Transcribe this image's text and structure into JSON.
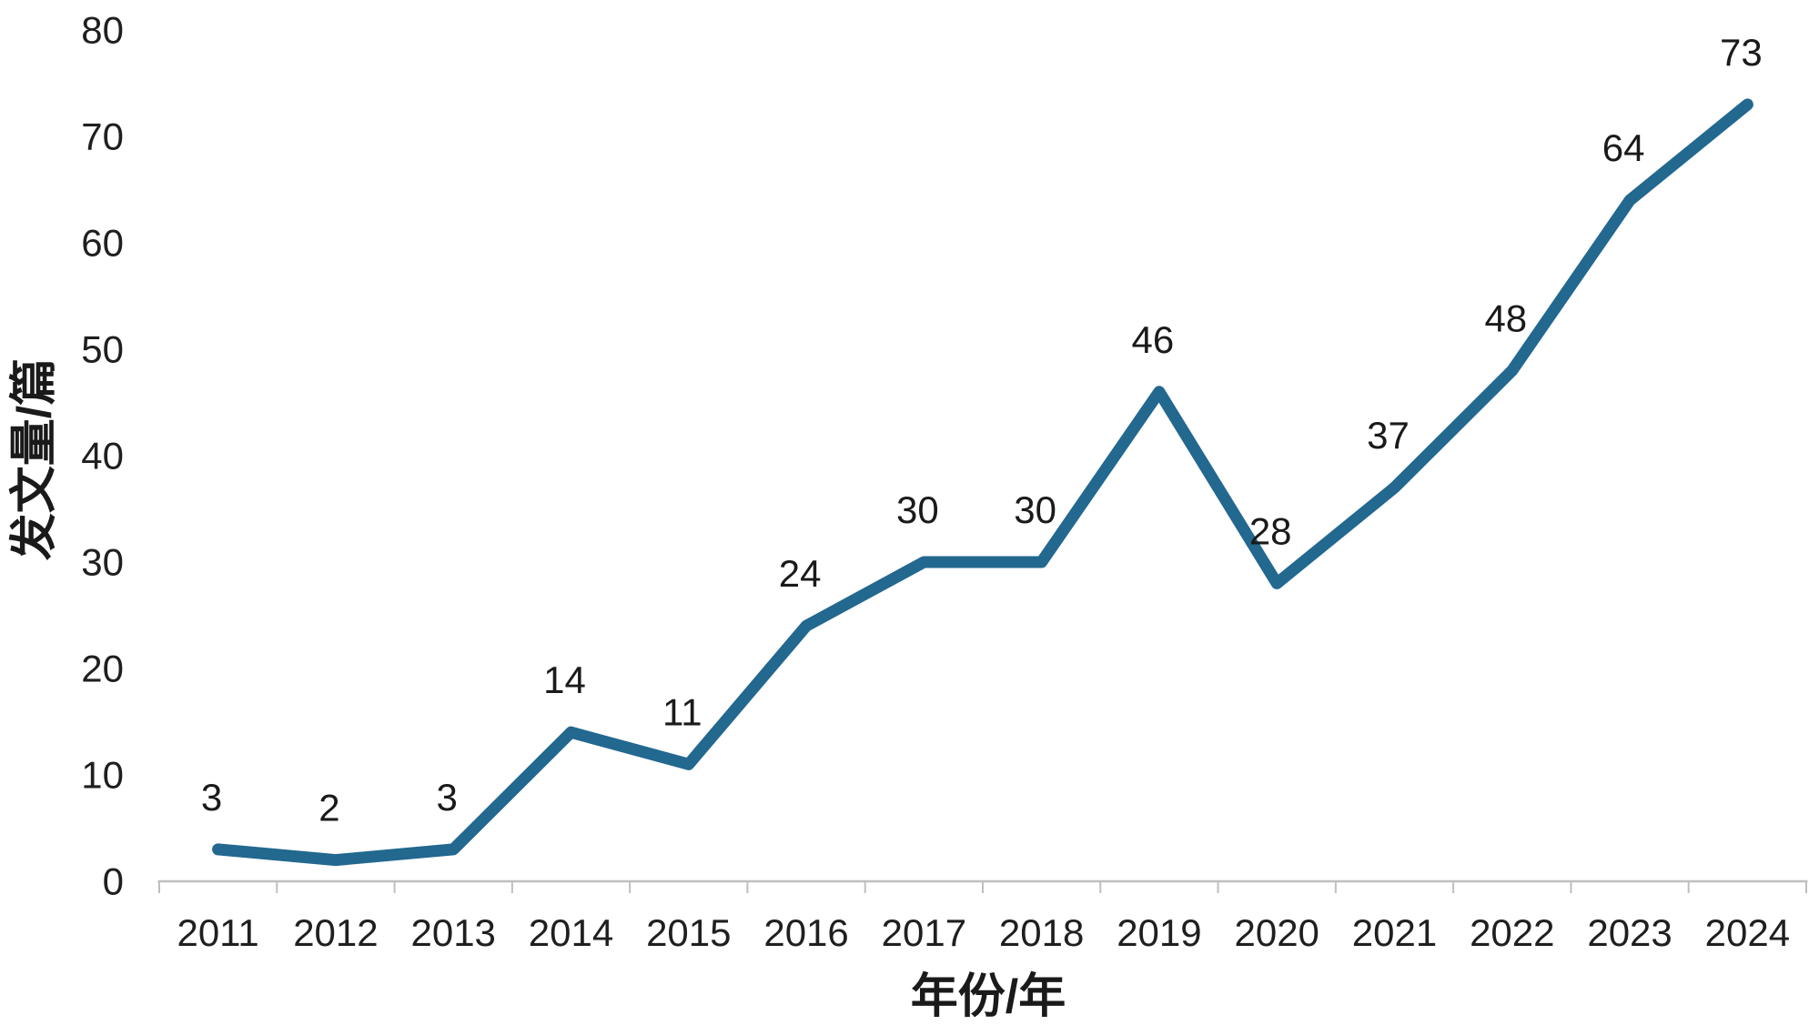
{
  "chart_data": {
    "type": "line",
    "title": "",
    "categories": [
      "2011",
      "2012",
      "2013",
      "2014",
      "2015",
      "2016",
      "2017",
      "2018",
      "2019",
      "2020",
      "2021",
      "2022",
      "2023",
      "2024"
    ],
    "values": [
      3,
      2,
      3,
      14,
      11,
      24,
      30,
      30,
      46,
      28,
      37,
      48,
      64,
      73
    ],
    "series": [
      {
        "name": "发文量",
        "values": [
          3,
          2,
          3,
          14,
          11,
          24,
          30,
          30,
          46,
          28,
          37,
          48,
          64,
          73
        ]
      }
    ],
    "xlabel": "年份/年",
    "ylabel": "发文量/篇",
    "ylim": [
      0,
      80
    ],
    "yticks": [
      0,
      10,
      20,
      30,
      40,
      50,
      60,
      70,
      80
    ],
    "grid": false,
    "legend_position": "none",
    "data_labels_visible": true,
    "colors": {
      "line": "#22688F",
      "axis": "#bfbfbf",
      "tick_text": "#1f1f1f",
      "label_text": "#1a1a1a",
      "background": "#ffffff"
    }
  }
}
